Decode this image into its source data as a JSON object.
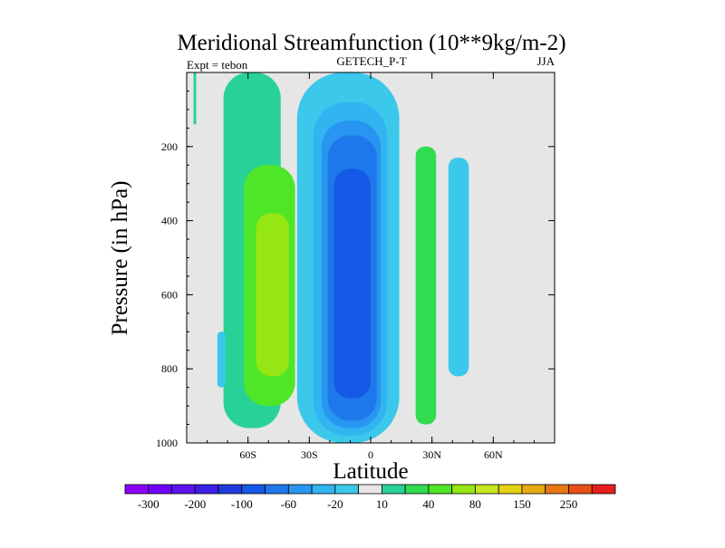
{
  "chart_data": {
    "type": "heatmap",
    "subtype": "filled-contour",
    "title": "Meridional Streamfunction (10**9kg/m-2)",
    "left_string": "Expt = tebon",
    "center_string": "GETECH_P-T",
    "right_string": "JJA",
    "xlabel": "Latitude",
    "ylabel": "Pressure (in hPa)",
    "xlim": [
      -90,
      90
    ],
    "ylim": [
      0,
      1000
    ],
    "y_reversed": true,
    "x_ticks": [
      {
        "value": -60,
        "label": "60S"
      },
      {
        "value": -30,
        "label": "30S"
      },
      {
        "value": 0,
        "label": "0"
      },
      {
        "value": 30,
        "label": "30N"
      },
      {
        "value": 60,
        "label": "60N"
      }
    ],
    "y_ticks": [
      {
        "value": 200,
        "label": "200"
      },
      {
        "value": 400,
        "label": "400"
      },
      {
        "value": 600,
        "label": "600"
      },
      {
        "value": 800,
        "label": "800"
      },
      {
        "value": 1000,
        "label": "1000"
      }
    ],
    "background_color": "#e6e6e6",
    "colorbar": {
      "levels": [
        -300,
        -250,
        -200,
        -150,
        -100,
        -80,
        -60,
        -40,
        -20,
        -10,
        10,
        20,
        40,
        60,
        80,
        100,
        150,
        200,
        250,
        300
      ],
      "labels": [
        {
          "value": -300,
          "label": "-300"
        },
        {
          "value": -200,
          "label": "-200"
        },
        {
          "value": -100,
          "label": "-100"
        },
        {
          "value": -60,
          "label": "-60"
        },
        {
          "value": -20,
          "label": "-20"
        },
        {
          "value": 10,
          "label": "10"
        },
        {
          "value": 40,
          "label": "40"
        },
        {
          "value": 80,
          "label": "80"
        },
        {
          "value": 150,
          "label": "150"
        },
        {
          "value": 250,
          "label": "250"
        }
      ],
      "colors": [
        "#8c00ff",
        "#6f00ff",
        "#5a14f0",
        "#3c1ee6",
        "#1e3cdc",
        "#145ae6",
        "#1e78eb",
        "#2896f0",
        "#32b4f0",
        "#3cc8eb",
        "#e6e6e6",
        "#28d296",
        "#32dc50",
        "#50e628",
        "#96e614",
        "#c8e61e",
        "#e6d214",
        "#e6aa14",
        "#e67814",
        "#e65014",
        "#e61e1e"
      ]
    },
    "cells": [
      {
        "name": "contour-sh-ferrel-outer",
        "lat": [
          -72,
          -44
        ],
        "p": [
          0,
          960
        ],
        "value": 12
      },
      {
        "name": "contour-sh-ferrel-40",
        "lat": [
          -62,
          -37
        ],
        "p": [
          250,
          900
        ],
        "value": 50
      },
      {
        "name": "contour-sh-ferrel-core",
        "lat": [
          -56,
          -40
        ],
        "p": [
          380,
          820
        ],
        "value": 70
      },
      {
        "name": "contour-sh-small-cell",
        "lat": [
          -75,
          -71
        ],
        "p": [
          700,
          850
        ],
        "value": -15
      },
      {
        "name": "contour-hadley-outer",
        "lat": [
          -36,
          14
        ],
        "p": [
          0,
          1000
        ],
        "value": -15
      },
      {
        "name": "contour-hadley-40",
        "lat": [
          -28,
          8
        ],
        "p": [
          80,
          980
        ],
        "value": -35
      },
      {
        "name": "contour-hadley-60",
        "lat": [
          -24,
          5
        ],
        "p": [
          130,
          960
        ],
        "value": -55
      },
      {
        "name": "contour-hadley-80",
        "lat": [
          -21,
          3
        ],
        "p": [
          170,
          940
        ],
        "value": -75
      },
      {
        "name": "contour-hadley-core",
        "lat": [
          -18,
          0
        ],
        "p": [
          260,
          880
        ],
        "value": -95
      },
      {
        "name": "contour-nh-ferrel",
        "lat": [
          22,
          32
        ],
        "p": [
          200,
          950
        ],
        "value": 20
      },
      {
        "name": "contour-nh-ferrel-core",
        "lat": [
          26,
          30
        ],
        "p": [
          330,
          760
        ],
        "value": 30
      },
      {
        "name": "contour-nh-polar-cell",
        "lat": [
          38,
          48
        ],
        "p": [
          230,
          820
        ],
        "value": -15
      }
    ],
    "top_fragment_strip": {
      "lat": -86,
      "p": [
        0,
        140
      ],
      "value": 12
    }
  }
}
